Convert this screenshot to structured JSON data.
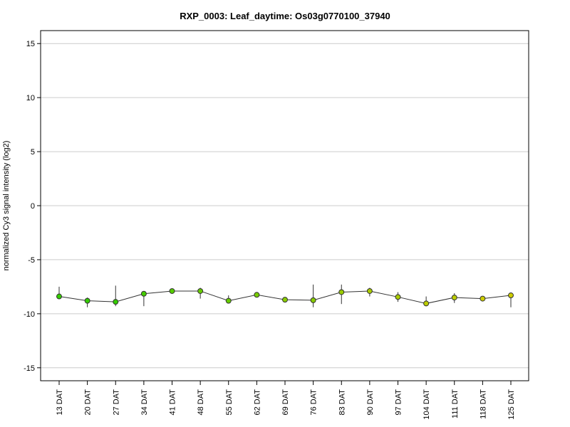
{
  "chart_data": {
    "type": "line",
    "title": "RXP_0003: Leaf_daytime: Os03g0770100_37940",
    "xlabel": "",
    "ylabel": "normalized Cy3 signal intensity (log2)",
    "ylim": [
      -16.2,
      16.2
    ],
    "yticks": [
      -15,
      -10,
      -5,
      0,
      5,
      10,
      15
    ],
    "ytick_labels": [
      "-15",
      "-10",
      "-5",
      "0",
      "5",
      "10",
      "15"
    ],
    "grid": true,
    "categories": [
      "13 DAT",
      "20 DAT",
      "27 DAT",
      "34 DAT",
      "41 DAT",
      "48 DAT",
      "55 DAT",
      "62 DAT",
      "69 DAT",
      "76 DAT",
      "83 DAT",
      "90 DAT",
      "97 DAT",
      "104 DAT",
      "111 DAT",
      "118 DAT",
      "125 DAT"
    ],
    "values": [
      -8.4,
      -8.8,
      -8.9,
      -8.15,
      -7.9,
      -7.9,
      -8.8,
      -8.25,
      -8.7,
      -8.75,
      -8.0,
      -7.9,
      -8.45,
      -9.05,
      -8.5,
      -8.6,
      -8.3
    ],
    "error_low": [
      -8.6,
      -9.4,
      -9.3,
      -9.3,
      -7.9,
      -8.6,
      -9.0,
      -8.4,
      -8.8,
      -9.4,
      -9.1,
      -8.4,
      -8.9,
      -9.3,
      -9.0,
      -8.8,
      -9.4
    ],
    "error_high": [
      -7.5,
      -8.5,
      -7.4,
      -7.9,
      -7.9,
      -7.6,
      -8.3,
      -8.1,
      -8.6,
      -7.3,
      -7.3,
      -7.6,
      -8.0,
      -8.4,
      -8.1,
      -8.4,
      -8.1
    ],
    "point_colors": [
      "#33cc00",
      "#33cc00",
      "#33cc00",
      "#44cc00",
      "#55cc00",
      "#66cc00",
      "#66cc00",
      "#77cc00",
      "#88cc00",
      "#88cc00",
      "#99cc00",
      "#aacc00",
      "#aacc00",
      "#bbcc00",
      "#bbcc00",
      "#cccc00",
      "#cccc00"
    ]
  }
}
